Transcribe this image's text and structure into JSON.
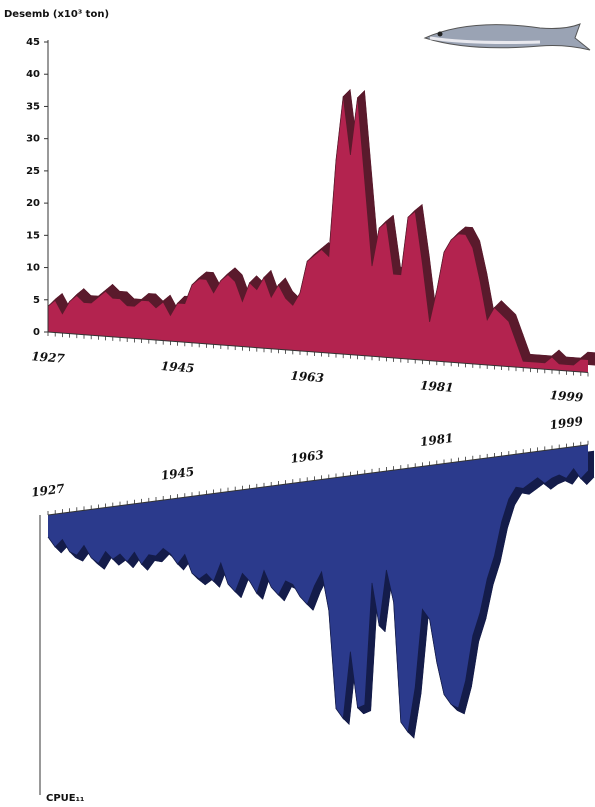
{
  "chart_data": [
    {
      "type": "area",
      "ylabel": "Desemb (x10³ ton)",
      "color": "#b3234f",
      "shade": "#5a1a2c",
      "x": [
        1927,
        1928,
        1929,
        1930,
        1931,
        1932,
        1933,
        1934,
        1935,
        1936,
        1937,
        1938,
        1939,
        1940,
        1941,
        1942,
        1943,
        1944,
        1945,
        1946,
        1947,
        1948,
        1949,
        1950,
        1951,
        1952,
        1953,
        1954,
        1955,
        1956,
        1957,
        1958,
        1959,
        1960,
        1961,
        1962,
        1963,
        1964,
        1965,
        1966,
        1967,
        1968,
        1969,
        1970,
        1971,
        1972,
        1973,
        1974,
        1975,
        1976,
        1977,
        1978,
        1979,
        1980,
        1981,
        1982,
        1983,
        1984,
        1985,
        1986,
        1987,
        1988,
        1989,
        1990,
        1991,
        1992,
        1993,
        1994,
        1995,
        1996,
        1997,
        1998,
        1999,
        2000,
        2001,
        2002
      ],
      "values": [
        4,
        5,
        3,
        5,
        6,
        5,
        5,
        6,
        7,
        6,
        6,
        5,
        5,
        6,
        6,
        5,
        6,
        4,
        6,
        6,
        9,
        10,
        10,
        8,
        10,
        11,
        10,
        7,
        10,
        9,
        11,
        8,
        10,
        8,
        7,
        9,
        14,
        15,
        16,
        15,
        30,
        40,
        31,
        40,
        27,
        14,
        20,
        21,
        13,
        13,
        22,
        23,
        15,
        6,
        11,
        17,
        19,
        20,
        20,
        18,
        13,
        7,
        9,
        8,
        7,
        4,
        1,
        1,
        1,
        1,
        2,
        1,
        1,
        1,
        2,
        2
      ],
      "xlim": [
        1927,
        2002
      ],
      "xticks": [
        1927,
        1945,
        1963,
        1981,
        1999
      ],
      "ylim": [
        0,
        45
      ],
      "yticks": [
        0,
        5,
        10,
        15,
        20,
        25,
        30,
        35,
        40,
        45
      ]
    },
    {
      "type": "area",
      "ylabel": "CPUE₁₁",
      "inverted": true,
      "color": "#2b3a8c",
      "shade": "#141c4a",
      "x": [
        1927,
        1928,
        1929,
        1930,
        1931,
        1932,
        1933,
        1934,
        1935,
        1936,
        1937,
        1938,
        1939,
        1940,
        1941,
        1942,
        1943,
        1944,
        1945,
        1946,
        1947,
        1948,
        1949,
        1950,
        1951,
        1952,
        1953,
        1954,
        1955,
        1956,
        1957,
        1958,
        1959,
        1960,
        1961,
        1962,
        1963,
        1964,
        1965,
        1966,
        1967,
        1968,
        1969,
        1970,
        1971,
        1972,
        1973,
        1974,
        1975,
        1976,
        1977,
        1978,
        1979,
        1980,
        1981,
        1982,
        1983,
        1984,
        1985,
        1986,
        1987,
        1988,
        1989,
        1990,
        1991,
        1992,
        1993,
        1994,
        1995,
        1996,
        1997,
        1998,
        1999,
        2000,
        2001,
        2002
      ],
      "values": [
        1,
        1.5,
        1.2,
        1.8,
        2,
        1.6,
        2.2,
        2.5,
        2,
        2.4,
        2.2,
        2.6,
        2.2,
        2.8,
        2.4,
        2.5,
        2.2,
        2.5,
        3,
        2.6,
        3.5,
        3.8,
        3.6,
        4,
        3.2,
        4.2,
        4.6,
        3.8,
        4.2,
        4.8,
        3.8,
        4.6,
        5,
        4.4,
        4.6,
        5.2,
        5.6,
        4.8,
        4.2,
        6,
        10.5,
        11,
        8,
        10.6,
        10.5,
        5,
        7,
        4.5,
        6,
        11.5,
        12,
        10,
        6.5,
        7,
        9,
        10.5,
        11,
        11.2,
        10,
        8,
        7,
        5.5,
        4.5,
        3,
        2,
        1.5,
        1.6,
        1.4,
        1.2,
        1.5,
        1.3,
        1.2,
        1.4,
        1,
        1.5,
        1.2
      ],
      "xlim": [
        1927,
        2002
      ],
      "xticks": [
        1927,
        1945,
        1963,
        1981,
        1999
      ],
      "ylim": [
        0,
        12
      ]
    }
  ]
}
